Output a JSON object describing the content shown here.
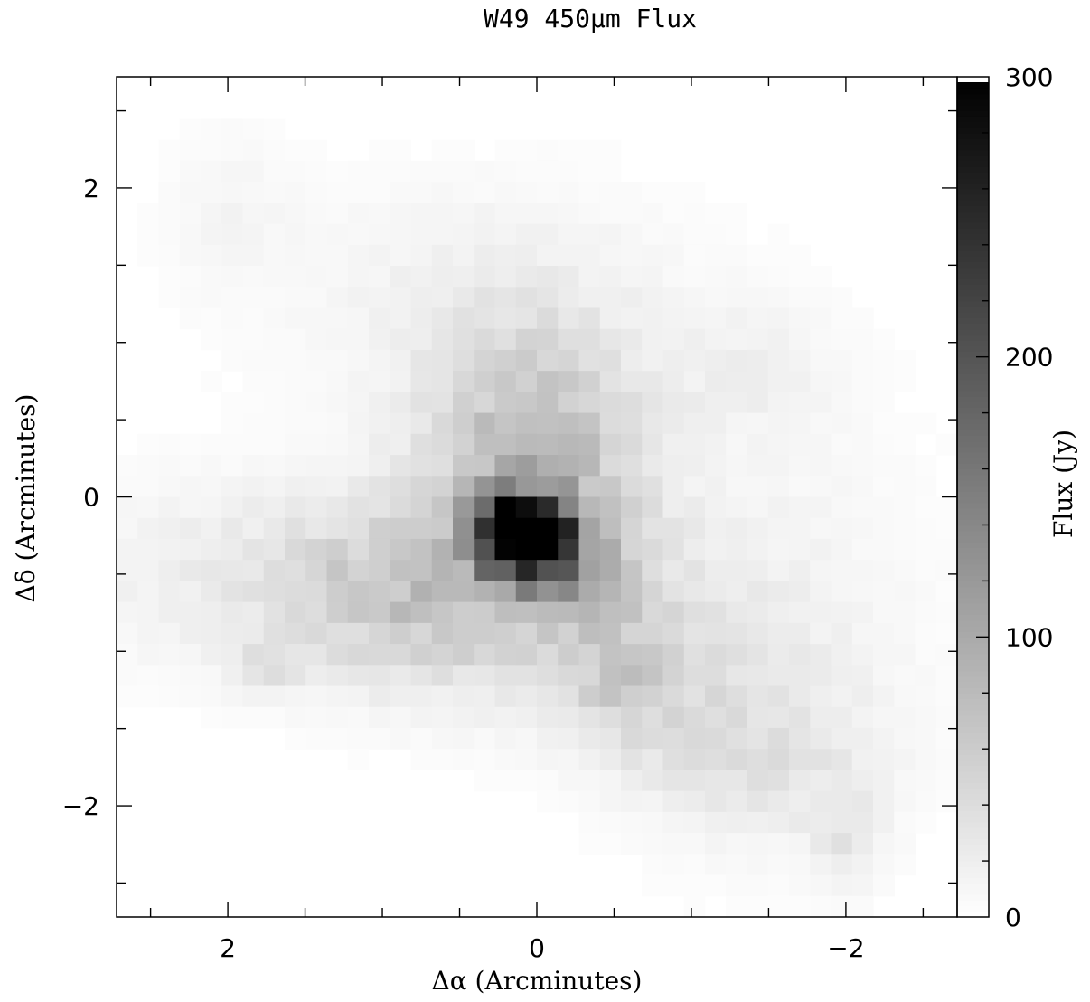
{
  "chart_data": {
    "type": "heatmap",
    "title": "W49 450μm Flux",
    "xlabel": "Δα (Arcminutes)",
    "ylabel": "Δδ (Arcminutes)",
    "xlim": [
      2.72,
      -2.72
    ],
    "ylim": [
      -2.72,
      2.72
    ],
    "x_ticks": [
      {
        "value": 2,
        "label": "2"
      },
      {
        "value": 0,
        "label": "0"
      },
      {
        "value": -2,
        "label": "−2"
      }
    ],
    "y_ticks": [
      {
        "value": 2,
        "label": "2"
      },
      {
        "value": 0,
        "label": "0"
      },
      {
        "value": -2,
        "label": "−2"
      }
    ],
    "minor_tick_step": 0.5,
    "colorbar": {
      "label": "Flux (Jy)",
      "range": [
        0,
        300
      ],
      "ticks": [
        {
          "value": 0,
          "label": "0"
        },
        {
          "value": 100,
          "label": "100"
        },
        {
          "value": 200,
          "label": "200"
        },
        {
          "value": 300,
          "label": "300"
        }
      ],
      "minor_tick_step": 20,
      "colormap": "grayscale, white = 0, black = 300"
    },
    "pixel_size_arcmin": 0.136,
    "peak": {
      "dx": 0.0,
      "dy": -0.3,
      "flux": 300
    },
    "emission_components": [
      {
        "dx": 0.05,
        "dy": -0.3,
        "sigma_x": 0.2,
        "sigma_y": 0.18,
        "flux": 320
      },
      {
        "dx": 0.25,
        "dy": -0.1,
        "sigma_x": 0.12,
        "sigma_y": 0.12,
        "flux": 90
      },
      {
        "dx": 0.0,
        "dy": 0.1,
        "sigma_x": 0.45,
        "sigma_y": 0.55,
        "flux": 55
      },
      {
        "dx": 0.1,
        "dy": 0.4,
        "sigma_x": 0.5,
        "sigma_y": 0.6,
        "flux": 30
      },
      {
        "dx": 0.0,
        "dy": -0.8,
        "sigma_x": 0.9,
        "sigma_y": 0.45,
        "flux": 30
      },
      {
        "dx": 0.9,
        "dy": -0.6,
        "sigma_x": 0.5,
        "sigma_y": 0.35,
        "flux": 30
      },
      {
        "dx": 1.5,
        "dy": -0.5,
        "sigma_x": 1.1,
        "sigma_y": 0.45,
        "flux": 25
      },
      {
        "dx": 0.4,
        "dy": 1.3,
        "sigma_x": 1.0,
        "sigma_y": 0.55,
        "flux": 15
      },
      {
        "dx": -1.5,
        "dy": -0.8,
        "sigma_x": 0.8,
        "sigma_y": 1.1,
        "flux": 12
      },
      {
        "dx": -1.5,
        "dy": -1.8,
        "sigma_x": 0.5,
        "sigma_y": 0.3,
        "flux": 15
      },
      {
        "dx": -2.0,
        "dy": -2.25,
        "sigma_x": 0.15,
        "sigma_y": 0.2,
        "flux": 25
      },
      {
        "dx": -0.6,
        "dy": -1.2,
        "sigma_x": 0.3,
        "sigma_y": 0.3,
        "flux": 35
      },
      {
        "dx": -0.35,
        "dy": -0.45,
        "sigma_x": 0.2,
        "sigma_y": 0.2,
        "flux": 25
      },
      {
        "dx": 1.75,
        "dy": -1.1,
        "sigma_x": 0.15,
        "sigma_y": 0.12,
        "flux": 25
      },
      {
        "dx": -1.4,
        "dy": 0.8,
        "sigma_x": 0.4,
        "sigma_y": 0.3,
        "flux": 12
      },
      {
        "dx": 2.0,
        "dy": 1.9,
        "sigma_x": 0.3,
        "sigma_y": 0.35,
        "flux": 10
      },
      {
        "dx": -1.3,
        "dy": -1.5,
        "sigma_x": 0.6,
        "sigma_y": 0.4,
        "flux": 15
      }
    ]
  }
}
